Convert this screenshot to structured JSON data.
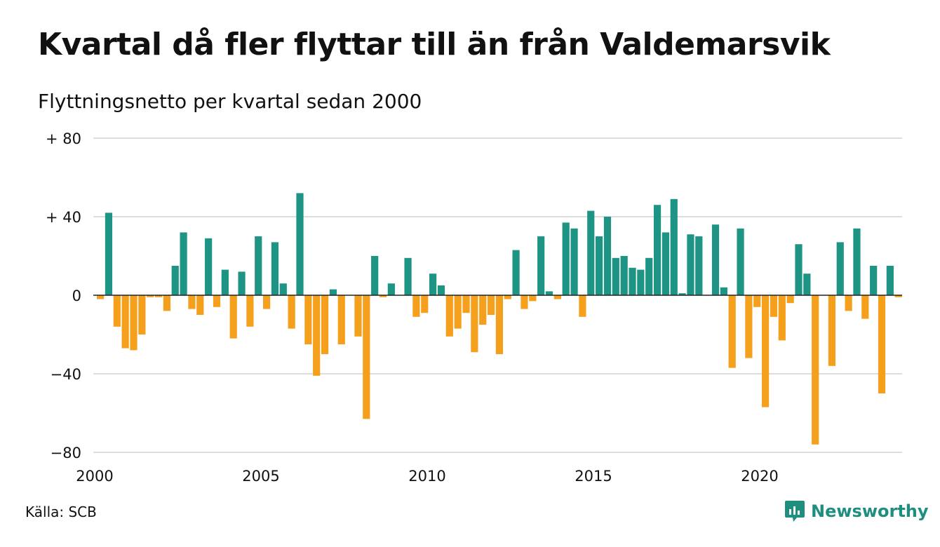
{
  "title": "Kvartal då fler flyttar till än från Valdemarsvik",
  "subtitle": "Flyttningsnetto per kvartal sedan 2000",
  "source": "Källa: SCB",
  "brand": "Newsworthy",
  "colors": {
    "positive": "#1e9484",
    "negative": "#f5a01c",
    "grid": "#dddddd",
    "baseline": "#222222",
    "brand": "#1e8f7e"
  },
  "chart_data": {
    "type": "bar",
    "x_start": "2000 Q1",
    "frequency": "quarterly",
    "ylim": [
      -80,
      80
    ],
    "y_ticks": [
      {
        "value": 80,
        "label": "+ 80"
      },
      {
        "value": 40,
        "label": "+ 40"
      },
      {
        "value": 0,
        "label": "0"
      },
      {
        "value": -40,
        "label": "−40"
      },
      {
        "value": -80,
        "label": "−80"
      }
    ],
    "x_ticks": [
      "2000",
      "2005",
      "2010",
      "2015",
      "2020"
    ],
    "grid": true,
    "values": [
      -2,
      42,
      -16,
      -27,
      -28,
      -20,
      -1,
      -1,
      -8,
      15,
      32,
      -7,
      -10,
      29,
      -6,
      13,
      -22,
      12,
      -16,
      30,
      -7,
      27,
      6,
      -17,
      52,
      -25,
      -41,
      -30,
      3,
      -25,
      0,
      -21,
      -63,
      20,
      -1,
      6,
      0,
      19,
      -11,
      -9,
      11,
      5,
      -21,
      -17,
      -9,
      -29,
      -15,
      -10,
      -30,
      -2,
      23,
      -7,
      -3,
      30,
      2,
      -2,
      37,
      34,
      -11,
      43,
      30,
      40,
      19,
      20,
      14,
      13,
      19,
      46,
      32,
      49,
      1,
      31,
      30,
      0,
      36,
      4,
      -37,
      34,
      -32,
      -6,
      -57,
      -11,
      -23,
      -4,
      26,
      11,
      -76,
      0,
      -36,
      27,
      -8,
      34,
      -12,
      15,
      -50,
      15,
      -1
    ]
  }
}
